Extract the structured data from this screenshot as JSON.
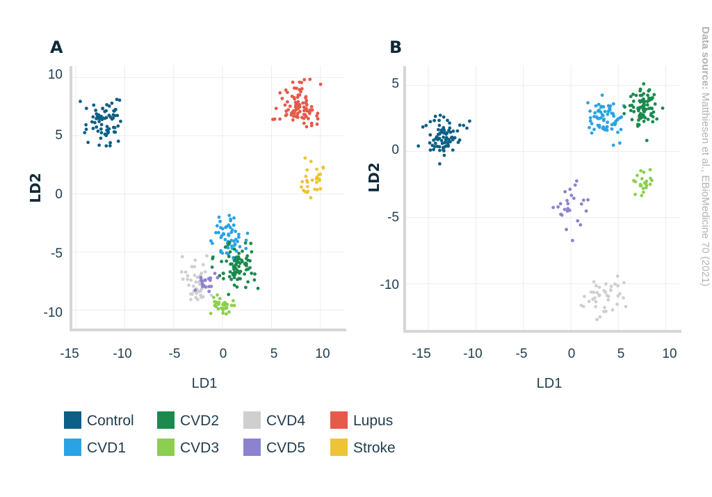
{
  "chart_data": [
    {
      "type": "scatter",
      "panel": "A",
      "xlabel": "LD1",
      "ylabel": "LD2",
      "xlim": [
        -15.5,
        12.5
      ],
      "ylim": [
        -11.7,
        10.8
      ],
      "xticks": [
        -15,
        -10,
        -5,
        0,
        5,
        10
      ],
      "yticks": [
        -10,
        -5,
        0,
        5,
        10
      ],
      "grid": true,
      "clusters": [
        {
          "group": "Control",
          "center": [
            -12.3,
            6.2
          ],
          "spread": [
            1.0,
            0.9
          ],
          "n": 70
        },
        {
          "group": "CVD1",
          "center": [
            0.7,
            -3.8
          ],
          "spread": [
            0.9,
            0.8
          ],
          "n": 60
        },
        {
          "group": "CVD2",
          "center": [
            1.5,
            -6.3
          ],
          "spread": [
            1.0,
            0.9
          ],
          "n": 80
        },
        {
          "group": "CVD3",
          "center": [
            0.0,
            -9.6
          ],
          "spread": [
            0.55,
            0.4
          ],
          "n": 30
        },
        {
          "group": "CVD4",
          "center": [
            -2.6,
            -7.5
          ],
          "spread": [
            0.8,
            0.9
          ],
          "n": 45
        },
        {
          "group": "CVD5",
          "center": [
            -1.6,
            -7.8
          ],
          "spread": [
            0.55,
            0.4
          ],
          "n": 20
        },
        {
          "group": "Lupus",
          "center": [
            7.7,
            7.6
          ],
          "spread": [
            1.0,
            0.9
          ],
          "n": 90
        },
        {
          "group": "Stroke",
          "center": [
            9.2,
            1.3
          ],
          "spread": [
            0.6,
            0.8
          ],
          "n": 28
        }
      ]
    },
    {
      "type": "scatter",
      "panel": "B",
      "xlabel": "LD1",
      "ylabel": "LD2",
      "xlim": [
        -17.5,
        11.5
      ],
      "ylim": [
        -13.6,
        6.3
      ],
      "xticks": [
        -15,
        -10,
        -5,
        0,
        5,
        10
      ],
      "yticks": [
        -10,
        -5,
        0,
        5
      ],
      "grid": true,
      "clusters": [
        {
          "group": "Control",
          "center": [
            -13.3,
            1.0
          ],
          "spread": [
            0.9,
            0.8
          ],
          "n": 75
        },
        {
          "group": "CVD1",
          "center": [
            3.7,
            2.6
          ],
          "spread": [
            0.8,
            0.7
          ],
          "n": 65
        },
        {
          "group": "CVD2",
          "center": [
            7.7,
            3.3
          ],
          "spread": [
            0.9,
            0.8
          ],
          "n": 85
        },
        {
          "group": "CVD3",
          "center": [
            7.5,
            -2.3
          ],
          "spread": [
            0.5,
            0.6
          ],
          "n": 25
        },
        {
          "group": "CVD4",
          "center": [
            3.5,
            -11.3
          ],
          "spread": [
            1.1,
            0.8
          ],
          "n": 40
        },
        {
          "group": "CVD5",
          "center": [
            -0.4,
            -4.3
          ],
          "spread": [
            0.9,
            1.2
          ],
          "n": 25
        }
      ]
    }
  ],
  "panels": {
    "a": {
      "label": "A",
      "xlabel": "LD1",
      "ylabel": "LD2"
    },
    "b": {
      "label": "B",
      "xlabel": "LD1",
      "ylabel": "LD2"
    }
  },
  "ticks": {
    "a_x": [
      "-15",
      "-10",
      "-5",
      "0",
      "5",
      "10"
    ],
    "a_y": [
      "10",
      "5",
      "0",
      "-5",
      "-10"
    ],
    "b_x": [
      "-15",
      "-10",
      "-5",
      "0",
      "5",
      "10"
    ],
    "b_y": [
      "5",
      "0",
      "-5",
      "-10"
    ]
  },
  "legend": [
    {
      "label": "Control",
      "color": "#0d5f86"
    },
    {
      "label": "CVD2",
      "color": "#1a8a4e"
    },
    {
      "label": "CVD4",
      "color": "#cfcfcf"
    },
    {
      "label": "Lupus",
      "color": "#e55a48"
    },
    {
      "label": "CVD1",
      "color": "#2aa3e4"
    },
    {
      "label": "CVD3",
      "color": "#8ccf4f"
    },
    {
      "label": "CVD5",
      "color": "#8c82d0"
    },
    {
      "label": "Stroke",
      "color": "#eec334"
    }
  ],
  "source": {
    "bold": "Data source:",
    "text": " Matthiesen et al., EBioMedicine 70 (2021)"
  }
}
